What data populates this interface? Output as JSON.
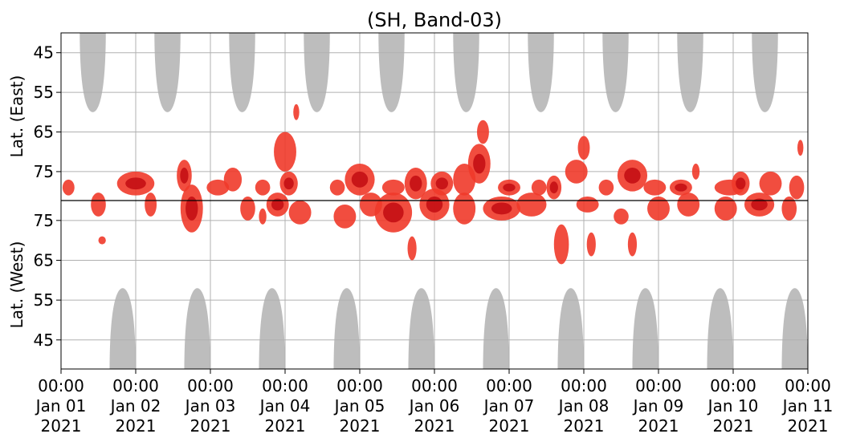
{
  "chart_data": {
    "type": "heatmap",
    "title": "(SH, Band-03)",
    "ylabel_top": "Lat. (East)",
    "ylabel_bottom": "Lat. (West)",
    "x_ticks": [
      [
        "00:00",
        "Jan 01",
        "2021"
      ],
      [
        "00:00",
        "Jan 02",
        "2021"
      ],
      [
        "00:00",
        "Jan 03",
        "2021"
      ],
      [
        "00:00",
        "Jan 04",
        "2021"
      ],
      [
        "00:00",
        "Jan 05",
        "2021"
      ],
      [
        "00:00",
        "Jan 06",
        "2021"
      ],
      [
        "00:00",
        "Jan 07",
        "2021"
      ],
      [
        "00:00",
        "Jan 08",
        "2021"
      ],
      [
        "00:00",
        "Jan 09",
        "2021"
      ],
      [
        "00:00",
        "Jan 10",
        "2021"
      ],
      [
        "00:00",
        "Jan 11",
        "2021"
      ]
    ],
    "xlim": [
      "2021-01-01 00:00",
      "2021-01-11 00:00"
    ],
    "y_ticks_east": [
      "45",
      "55",
      "65",
      "75"
    ],
    "y_ticks_west": [
      "75",
      "65",
      "55",
      "45"
    ],
    "grid": true,
    "colors": {
      "event": "#f03a2a",
      "event_dark": "#c40f14",
      "coverage_gap": "#bdbdbd",
      "grid": "#b0b0b0"
    },
    "coverage_gaps_east": [
      {
        "start_day": 0.25,
        "end_day": 0.6,
        "min_lat": 60
      },
      {
        "start_day": 1.25,
        "end_day": 1.6,
        "min_lat": 60
      },
      {
        "start_day": 2.25,
        "end_day": 2.6,
        "min_lat": 60
      },
      {
        "start_day": 3.25,
        "end_day": 3.6,
        "min_lat": 60
      },
      {
        "start_day": 4.25,
        "end_day": 4.6,
        "min_lat": 60
      },
      {
        "start_day": 5.25,
        "end_day": 5.6,
        "min_lat": 60
      },
      {
        "start_day": 6.25,
        "end_day": 6.6,
        "min_lat": 60
      },
      {
        "start_day": 7.25,
        "end_day": 7.6,
        "min_lat": 60
      },
      {
        "start_day": 8.25,
        "end_day": 8.6,
        "min_lat": 60
      },
      {
        "start_day": 9.25,
        "end_day": 9.6,
        "min_lat": 60
      }
    ],
    "coverage_gaps_west": [
      {
        "start_day": 0.65,
        "end_day": 1.0,
        "min_lat": 58
      },
      {
        "start_day": 1.65,
        "end_day": 2.0,
        "min_lat": 58
      },
      {
        "start_day": 2.65,
        "end_day": 3.0,
        "min_lat": 58
      },
      {
        "start_day": 3.65,
        "end_day": 4.0,
        "min_lat": 58
      },
      {
        "start_day": 4.65,
        "end_day": 5.0,
        "min_lat": 58
      },
      {
        "start_day": 5.65,
        "end_day": 6.0,
        "min_lat": 58
      },
      {
        "start_day": 6.65,
        "end_day": 7.0,
        "min_lat": 58
      },
      {
        "start_day": 7.65,
        "end_day": 8.0,
        "min_lat": 58
      },
      {
        "start_day": 8.65,
        "end_day": 9.0,
        "min_lat": 58
      },
      {
        "start_day": 9.65,
        "end_day": 10.0,
        "min_lat": 58
      }
    ],
    "event_blobs": [
      {
        "day": 0.1,
        "lat": 79,
        "side": "east",
        "dlat": 2,
        "ddays": 0.08,
        "dark": false
      },
      {
        "day": 0.5,
        "lat": 79,
        "side": "west",
        "dlat": 3,
        "ddays": 0.1,
        "dark": false
      },
      {
        "day": 0.55,
        "lat": 70,
        "side": "west",
        "dlat": 1,
        "ddays": 0.05,
        "dark": false
      },
      {
        "day": 1.0,
        "lat": 78,
        "side": "east",
        "dlat": 3,
        "ddays": 0.25,
        "dark": true
      },
      {
        "day": 1.2,
        "lat": 79,
        "side": "west",
        "dlat": 3,
        "ddays": 0.08,
        "dark": false
      },
      {
        "day": 1.65,
        "lat": 76,
        "side": "east",
        "dlat": 4,
        "ddays": 0.1,
        "dark": true
      },
      {
        "day": 1.75,
        "lat": 78,
        "side": "west",
        "dlat": 6,
        "ddays": 0.15,
        "dark": true
      },
      {
        "day": 2.1,
        "lat": 79,
        "side": "east",
        "dlat": 2,
        "ddays": 0.15,
        "dark": false
      },
      {
        "day": 2.3,
        "lat": 77,
        "side": "east",
        "dlat": 3,
        "ddays": 0.12,
        "dark": false
      },
      {
        "day": 2.5,
        "lat": 78,
        "side": "west",
        "dlat": 3,
        "ddays": 0.1,
        "dark": false
      },
      {
        "day": 2.7,
        "lat": 79,
        "side": "east",
        "dlat": 2,
        "ddays": 0.1,
        "dark": false
      },
      {
        "day": 2.7,
        "lat": 76,
        "side": "west",
        "dlat": 2,
        "ddays": 0.05,
        "dark": false
      },
      {
        "day": 2.9,
        "lat": 79,
        "side": "west",
        "dlat": 3,
        "ddays": 0.15,
        "dark": true
      },
      {
        "day": 3.0,
        "lat": 70,
        "side": "east",
        "dlat": 5,
        "ddays": 0.15,
        "dark": false
      },
      {
        "day": 3.05,
        "lat": 78,
        "side": "east",
        "dlat": 3,
        "ddays": 0.12,
        "dark": true
      },
      {
        "day": 3.15,
        "lat": 60,
        "side": "east",
        "dlat": 2,
        "ddays": 0.04,
        "dark": false
      },
      {
        "day": 3.2,
        "lat": 77,
        "side": "west",
        "dlat": 3,
        "ddays": 0.15,
        "dark": false
      },
      {
        "day": 3.7,
        "lat": 79,
        "side": "east",
        "dlat": 2,
        "ddays": 0.1,
        "dark": false
      },
      {
        "day": 3.8,
        "lat": 76,
        "side": "west",
        "dlat": 3,
        "ddays": 0.15,
        "dark": false
      },
      {
        "day": 4.0,
        "lat": 77,
        "side": "east",
        "dlat": 4,
        "ddays": 0.2,
        "dark": true
      },
      {
        "day": 4.15,
        "lat": 79,
        "side": "west",
        "dlat": 3,
        "ddays": 0.15,
        "dark": false
      },
      {
        "day": 4.45,
        "lat": 79,
        "side": "east",
        "dlat": 2,
        "ddays": 0.15,
        "dark": false
      },
      {
        "day": 4.45,
        "lat": 77,
        "side": "west",
        "dlat": 5,
        "ddays": 0.25,
        "dark": true
      },
      {
        "day": 4.75,
        "lat": 78,
        "side": "east",
        "dlat": 4,
        "ddays": 0.15,
        "dark": true
      },
      {
        "day": 4.7,
        "lat": 68,
        "side": "west",
        "dlat": 3,
        "ddays": 0.06,
        "dark": false
      },
      {
        "day": 5.0,
        "lat": 79,
        "side": "west",
        "dlat": 4,
        "ddays": 0.2,
        "dark": true
      },
      {
        "day": 5.1,
        "lat": 78,
        "side": "east",
        "dlat": 3,
        "ddays": 0.15,
        "dark": true
      },
      {
        "day": 5.4,
        "lat": 77,
        "side": "east",
        "dlat": 4,
        "ddays": 0.15,
        "dark": false
      },
      {
        "day": 5.4,
        "lat": 78,
        "side": "west",
        "dlat": 4,
        "ddays": 0.15,
        "dark": false
      },
      {
        "day": 5.6,
        "lat": 73,
        "side": "east",
        "dlat": 5,
        "ddays": 0.15,
        "dark": true
      },
      {
        "day": 5.65,
        "lat": 65,
        "side": "east",
        "dlat": 3,
        "ddays": 0.08,
        "dark": false
      },
      {
        "day": 5.9,
        "lat": 78,
        "side": "west",
        "dlat": 3,
        "ddays": 0.25,
        "dark": true
      },
      {
        "day": 6.0,
        "lat": 79,
        "side": "east",
        "dlat": 2,
        "ddays": 0.15,
        "dark": true
      },
      {
        "day": 6.3,
        "lat": 79,
        "side": "west",
        "dlat": 3,
        "ddays": 0.2,
        "dark": false
      },
      {
        "day": 6.4,
        "lat": 79,
        "side": "east",
        "dlat": 2,
        "ddays": 0.1,
        "dark": false
      },
      {
        "day": 6.6,
        "lat": 79,
        "side": "east",
        "dlat": 3,
        "ddays": 0.1,
        "dark": true
      },
      {
        "day": 6.7,
        "lat": 69,
        "side": "west",
        "dlat": 5,
        "ddays": 0.1,
        "dark": false
      },
      {
        "day": 6.9,
        "lat": 75,
        "side": "east",
        "dlat": 3,
        "ddays": 0.15,
        "dark": false
      },
      {
        "day": 7.0,
        "lat": 69,
        "side": "east",
        "dlat": 3,
        "ddays": 0.08,
        "dark": false
      },
      {
        "day": 7.05,
        "lat": 79,
        "side": "west",
        "dlat": 2,
        "ddays": 0.15,
        "dark": false
      },
      {
        "day": 7.1,
        "lat": 69,
        "side": "west",
        "dlat": 3,
        "ddays": 0.06,
        "dark": false
      },
      {
        "day": 7.3,
        "lat": 79,
        "side": "east",
        "dlat": 2,
        "ddays": 0.1,
        "dark": false
      },
      {
        "day": 7.5,
        "lat": 76,
        "side": "west",
        "dlat": 2,
        "ddays": 0.1,
        "dark": false
      },
      {
        "day": 7.65,
        "lat": 76,
        "side": "east",
        "dlat": 4,
        "ddays": 0.2,
        "dark": true
      },
      {
        "day": 7.65,
        "lat": 69,
        "side": "west",
        "dlat": 3,
        "ddays": 0.06,
        "dark": false
      },
      {
        "day": 7.95,
        "lat": 79,
        "side": "east",
        "dlat": 2,
        "ddays": 0.15,
        "dark": false
      },
      {
        "day": 8.0,
        "lat": 78,
        "side": "west",
        "dlat": 3,
        "ddays": 0.15,
        "dark": false
      },
      {
        "day": 8.3,
        "lat": 79,
        "side": "east",
        "dlat": 2,
        "ddays": 0.15,
        "dark": true
      },
      {
        "day": 8.4,
        "lat": 79,
        "side": "west",
        "dlat": 3,
        "ddays": 0.15,
        "dark": false
      },
      {
        "day": 8.5,
        "lat": 75,
        "side": "east",
        "dlat": 2,
        "ddays": 0.05,
        "dark": false
      },
      {
        "day": 8.95,
        "lat": 79,
        "side": "east",
        "dlat": 2,
        "ddays": 0.2,
        "dark": false
      },
      {
        "day": 8.9,
        "lat": 78,
        "side": "west",
        "dlat": 3,
        "ddays": 0.15,
        "dark": false
      },
      {
        "day": 9.1,
        "lat": 78,
        "side": "east",
        "dlat": 3,
        "ddays": 0.12,
        "dark": true
      },
      {
        "day": 9.35,
        "lat": 79,
        "side": "west",
        "dlat": 3,
        "ddays": 0.2,
        "dark": true
      },
      {
        "day": 9.5,
        "lat": 78,
        "side": "east",
        "dlat": 3,
        "ddays": 0.15,
        "dark": false
      },
      {
        "day": 9.75,
        "lat": 78,
        "side": "west",
        "dlat": 3,
        "ddays": 0.1,
        "dark": false
      },
      {
        "day": 9.85,
        "lat": 79,
        "side": "east",
        "dlat": 3,
        "ddays": 0.1,
        "dark": false
      },
      {
        "day": 9.9,
        "lat": 69,
        "side": "east",
        "dlat": 2,
        "ddays": 0.04,
        "dark": false
      }
    ]
  }
}
